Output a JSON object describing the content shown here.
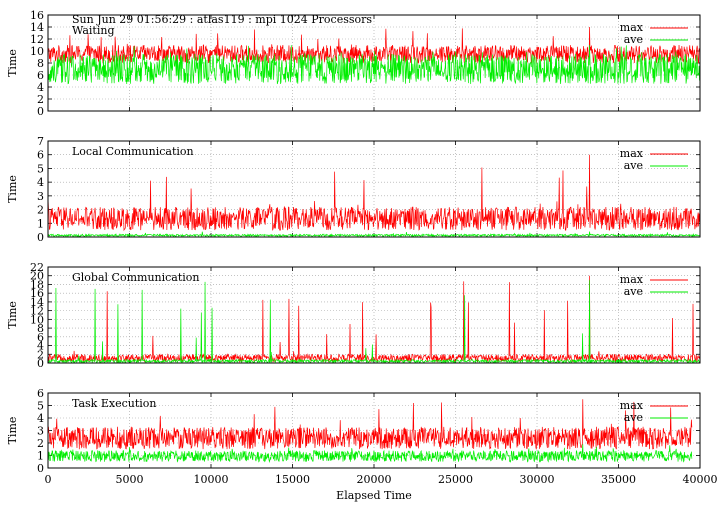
{
  "header": {
    "run_info": "Sun Jun 29 01:56:29 : atlas119 : mpi 1024 Processors"
  },
  "colors": {
    "max": "#ff0000",
    "ave": "#00ee00",
    "grid": "#a0a0a0",
    "frame": "#000000"
  },
  "chart_data": [
    {
      "type": "line",
      "title": "Waiting",
      "ylabel": "Time",
      "xlabel": "",
      "xlim": [
        0,
        40000
      ],
      "ylim": [
        0,
        16
      ],
      "yticks": [
        "0",
        "2",
        "4",
        "6",
        "8",
        "10",
        "12",
        "14",
        "16"
      ],
      "grid": true,
      "legend": "top-right",
      "series": [
        {
          "name": "max",
          "x": [
            0,
            40000
          ],
          "y_typical": [
            8,
            11
          ],
          "y_peak": 14
        },
        {
          "name": "ave",
          "x": [
            0,
            40000
          ],
          "y_typical": [
            4.5,
            9.5
          ],
          "y_peak": 11
        }
      ]
    },
    {
      "type": "line",
      "title": "Local Communication",
      "ylabel": "Time",
      "xlabel": "",
      "xlim": [
        0,
        40000
      ],
      "ylim": [
        0,
        7
      ],
      "yticks": [
        "0",
        "1",
        "2",
        "3",
        "4",
        "5",
        "6",
        "7"
      ],
      "grid": true,
      "legend": "top-right",
      "series": [
        {
          "name": "max",
          "x": [
            0,
            40000
          ],
          "y_typical": [
            0.5,
            2.2
          ],
          "y_peak": 6.0
        },
        {
          "name": "ave",
          "x": [
            0,
            40000
          ],
          "y_typical": [
            0.05,
            0.2
          ],
          "y_peak": 0.4
        }
      ]
    },
    {
      "type": "line",
      "title": "Global Communication",
      "ylabel": "Time",
      "xlabel": "",
      "xlim": [
        0,
        40000
      ],
      "ylim": [
        0,
        22
      ],
      "yticks": [
        "0",
        "2",
        "4",
        "6",
        "8",
        "10",
        "12",
        "14",
        "16",
        "18",
        "20",
        "22"
      ],
      "grid": true,
      "legend": "top-right",
      "series": [
        {
          "name": "max",
          "x": [
            0,
            40000
          ],
          "y_typical": [
            0.3,
            2.0
          ],
          "y_peak": 20
        },
        {
          "name": "ave",
          "x": [
            0,
            40000
          ],
          "y_typical": [
            0.1,
            0.8
          ],
          "y_peak": 19
        }
      ]
    },
    {
      "type": "line",
      "title": "Task Execution",
      "ylabel": "Time",
      "xlabel": "Elapsed Time",
      "xlim": [
        0,
        40000
      ],
      "ylim": [
        0,
        6
      ],
      "yticks": [
        "0",
        "1",
        "2",
        "3",
        "4",
        "5",
        "6"
      ],
      "xticks": [
        "0",
        "5000",
        "10000",
        "15000",
        "20000",
        "25000",
        "30000",
        "35000",
        "40000"
      ],
      "grid": true,
      "legend": "top-right",
      "series": [
        {
          "name": "max",
          "x": [
            0,
            39500
          ],
          "y_typical": [
            1.5,
            3.3
          ],
          "y_peak": 5.5
        },
        {
          "name": "ave",
          "x": [
            0,
            39500
          ],
          "y_typical": [
            0.5,
            1.4
          ],
          "y_peak": 1.9
        }
      ]
    }
  ]
}
